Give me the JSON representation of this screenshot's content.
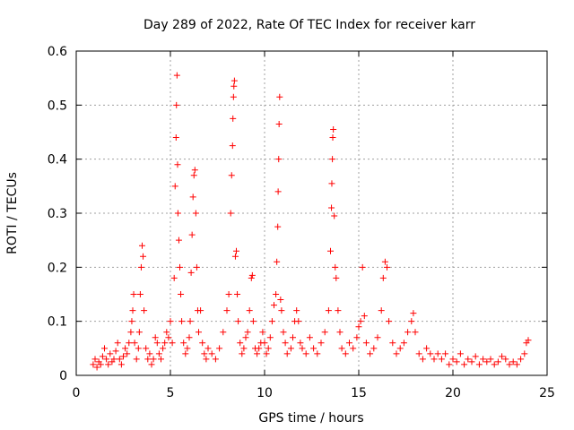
{
  "chart_data": {
    "type": "scatter",
    "title": "Day 289 of 2022, Rate Of TEC Index for receiver karr",
    "xlabel": "GPS time / hours",
    "ylabel": "ROTI / TECUs",
    "xlim": [
      0,
      25
    ],
    "ylim": [
      0,
      0.6
    ],
    "x_ticks": [
      "0",
      "5",
      "10",
      "15",
      "20",
      "25"
    ],
    "y_ticks": [
      "0",
      "0.1",
      "0.2",
      "0.3",
      "0.4",
      "0.5",
      "0.6"
    ],
    "grid": true,
    "marker": "+",
    "color": "#ff0000",
    "points": [
      [
        0.9,
        0.02
      ],
      [
        1.0,
        0.03
      ],
      [
        1.1,
        0.015
      ],
      [
        1.2,
        0.025
      ],
      [
        1.3,
        0.02
      ],
      [
        1.4,
        0.035
      ],
      [
        1.5,
        0.05
      ],
      [
        1.6,
        0.03
      ],
      [
        1.7,
        0.02
      ],
      [
        1.8,
        0.04
      ],
      [
        1.9,
        0.025
      ],
      [
        2.0,
        0.03
      ],
      [
        2.1,
        0.045
      ],
      [
        2.2,
        0.06
      ],
      [
        2.3,
        0.03
      ],
      [
        2.4,
        0.02
      ],
      [
        2.5,
        0.035
      ],
      [
        2.6,
        0.05
      ],
      [
        2.7,
        0.04
      ],
      [
        2.8,
        0.06
      ],
      [
        2.9,
        0.08
      ],
      [
        2.95,
        0.1
      ],
      [
        3.0,
        0.12
      ],
      [
        3.05,
        0.15
      ],
      [
        3.1,
        0.06
      ],
      [
        3.2,
        0.03
      ],
      [
        3.3,
        0.05
      ],
      [
        3.35,
        0.08
      ],
      [
        3.4,
        0.15
      ],
      [
        3.45,
        0.2
      ],
      [
        3.5,
        0.24
      ],
      [
        3.55,
        0.22
      ],
      [
        3.6,
        0.12
      ],
      [
        3.7,
        0.05
      ],
      [
        3.8,
        0.03
      ],
      [
        3.9,
        0.04
      ],
      [
        4.0,
        0.02
      ],
      [
        4.1,
        0.03
      ],
      [
        4.2,
        0.07
      ],
      [
        4.3,
        0.06
      ],
      [
        4.4,
        0.04
      ],
      [
        4.5,
        0.03
      ],
      [
        4.6,
        0.05
      ],
      [
        4.7,
        0.06
      ],
      [
        4.8,
        0.08
      ],
      [
        4.9,
        0.07
      ],
      [
        5.0,
        0.1
      ],
      [
        5.1,
        0.06
      ],
      [
        5.2,
        0.18
      ],
      [
        5.25,
        0.35
      ],
      [
        5.3,
        0.44
      ],
      [
        5.32,
        0.5
      ],
      [
        5.35,
        0.555
      ],
      [
        5.38,
        0.39
      ],
      [
        5.4,
        0.3
      ],
      [
        5.45,
        0.25
      ],
      [
        5.5,
        0.2
      ],
      [
        5.55,
        0.15
      ],
      [
        5.6,
        0.1
      ],
      [
        5.7,
        0.06
      ],
      [
        5.8,
        0.04
      ],
      [
        5.9,
        0.05
      ],
      [
        6.0,
        0.07
      ],
      [
        6.05,
        0.1
      ],
      [
        6.1,
        0.19
      ],
      [
        6.15,
        0.26
      ],
      [
        6.2,
        0.33
      ],
      [
        6.25,
        0.37
      ],
      [
        6.3,
        0.38
      ],
      [
        6.35,
        0.3
      ],
      [
        6.4,
        0.2
      ],
      [
        6.45,
        0.12
      ],
      [
        6.5,
        0.08
      ],
      [
        6.6,
        0.12
      ],
      [
        6.7,
        0.06
      ],
      [
        6.8,
        0.04
      ],
      [
        6.9,
        0.03
      ],
      [
        7.0,
        0.05
      ],
      [
        7.2,
        0.04
      ],
      [
        7.4,
        0.03
      ],
      [
        7.6,
        0.05
      ],
      [
        7.8,
        0.08
      ],
      [
        8.0,
        0.12
      ],
      [
        8.1,
        0.15
      ],
      [
        8.2,
        0.3
      ],
      [
        8.25,
        0.37
      ],
      [
        8.3,
        0.425
      ],
      [
        8.32,
        0.475
      ],
      [
        8.35,
        0.515
      ],
      [
        8.37,
        0.535
      ],
      [
        8.4,
        0.545
      ],
      [
        8.45,
        0.22
      ],
      [
        8.5,
        0.23
      ],
      [
        8.55,
        0.15
      ],
      [
        8.6,
        0.1
      ],
      [
        8.7,
        0.06
      ],
      [
        8.8,
        0.04
      ],
      [
        8.9,
        0.05
      ],
      [
        9.0,
        0.07
      ],
      [
        9.1,
        0.08
      ],
      [
        9.2,
        0.12
      ],
      [
        9.3,
        0.18
      ],
      [
        9.35,
        0.185
      ],
      [
        9.4,
        0.1
      ],
      [
        9.5,
        0.05
      ],
      [
        9.6,
        0.04
      ],
      [
        9.7,
        0.05
      ],
      [
        9.8,
        0.06
      ],
      [
        9.9,
        0.08
      ],
      [
        10.0,
        0.06
      ],
      [
        10.1,
        0.04
      ],
      [
        10.2,
        0.05
      ],
      [
        10.3,
        0.07
      ],
      [
        10.4,
        0.1
      ],
      [
        10.5,
        0.13
      ],
      [
        10.6,
        0.15
      ],
      [
        10.65,
        0.21
      ],
      [
        10.7,
        0.275
      ],
      [
        10.72,
        0.34
      ],
      [
        10.75,
        0.4
      ],
      [
        10.77,
        0.465
      ],
      [
        10.8,
        0.515
      ],
      [
        10.85,
        0.14
      ],
      [
        10.9,
        0.12
      ],
      [
        11.0,
        0.08
      ],
      [
        11.1,
        0.06
      ],
      [
        11.2,
        0.04
      ],
      [
        11.4,
        0.05
      ],
      [
        11.5,
        0.07
      ],
      [
        11.6,
        0.1
      ],
      [
        11.7,
        0.12
      ],
      [
        11.8,
        0.1
      ],
      [
        11.9,
        0.06
      ],
      [
        12.0,
        0.05
      ],
      [
        12.2,
        0.04
      ],
      [
        12.4,
        0.07
      ],
      [
        12.6,
        0.05
      ],
      [
        12.8,
        0.04
      ],
      [
        13.0,
        0.06
      ],
      [
        13.2,
        0.08
      ],
      [
        13.4,
        0.12
      ],
      [
        13.5,
        0.23
      ],
      [
        13.55,
        0.31
      ],
      [
        13.57,
        0.355
      ],
      [
        13.6,
        0.4
      ],
      [
        13.62,
        0.44
      ],
      [
        13.65,
        0.455
      ],
      [
        13.7,
        0.295
      ],
      [
        13.75,
        0.2
      ],
      [
        13.8,
        0.18
      ],
      [
        13.9,
        0.12
      ],
      [
        14.0,
        0.08
      ],
      [
        14.1,
        0.05
      ],
      [
        14.3,
        0.04
      ],
      [
        14.5,
        0.06
      ],
      [
        14.7,
        0.05
      ],
      [
        14.9,
        0.07
      ],
      [
        15.0,
        0.09
      ],
      [
        15.1,
        0.1
      ],
      [
        15.2,
        0.2
      ],
      [
        15.3,
        0.11
      ],
      [
        15.4,
        0.06
      ],
      [
        15.6,
        0.04
      ],
      [
        15.8,
        0.05
      ],
      [
        16.0,
        0.07
      ],
      [
        16.2,
        0.12
      ],
      [
        16.3,
        0.18
      ],
      [
        16.4,
        0.21
      ],
      [
        16.5,
        0.2
      ],
      [
        16.6,
        0.1
      ],
      [
        16.8,
        0.06
      ],
      [
        17.0,
        0.04
      ],
      [
        17.2,
        0.05
      ],
      [
        17.4,
        0.06
      ],
      [
        17.6,
        0.08
      ],
      [
        17.8,
        0.1
      ],
      [
        17.9,
        0.115
      ],
      [
        18.0,
        0.08
      ],
      [
        18.2,
        0.04
      ],
      [
        18.4,
        0.03
      ],
      [
        18.6,
        0.05
      ],
      [
        18.8,
        0.04
      ],
      [
        19.0,
        0.03
      ],
      [
        19.2,
        0.04
      ],
      [
        19.4,
        0.03
      ],
      [
        19.6,
        0.04
      ],
      [
        19.8,
        0.02
      ],
      [
        20.0,
        0.03
      ],
      [
        20.2,
        0.025
      ],
      [
        20.4,
        0.04
      ],
      [
        20.6,
        0.02
      ],
      [
        20.8,
        0.03
      ],
      [
        21.0,
        0.025
      ],
      [
        21.2,
        0.035
      ],
      [
        21.4,
        0.02
      ],
      [
        21.6,
        0.03
      ],
      [
        21.8,
        0.025
      ],
      [
        22.0,
        0.03
      ],
      [
        22.2,
        0.02
      ],
      [
        22.4,
        0.025
      ],
      [
        22.6,
        0.035
      ],
      [
        22.8,
        0.03
      ],
      [
        23.0,
        0.02
      ],
      [
        23.2,
        0.025
      ],
      [
        23.4,
        0.02
      ],
      [
        23.6,
        0.03
      ],
      [
        23.8,
        0.04
      ],
      [
        23.9,
        0.06
      ],
      [
        24.0,
        0.065
      ]
    ]
  }
}
